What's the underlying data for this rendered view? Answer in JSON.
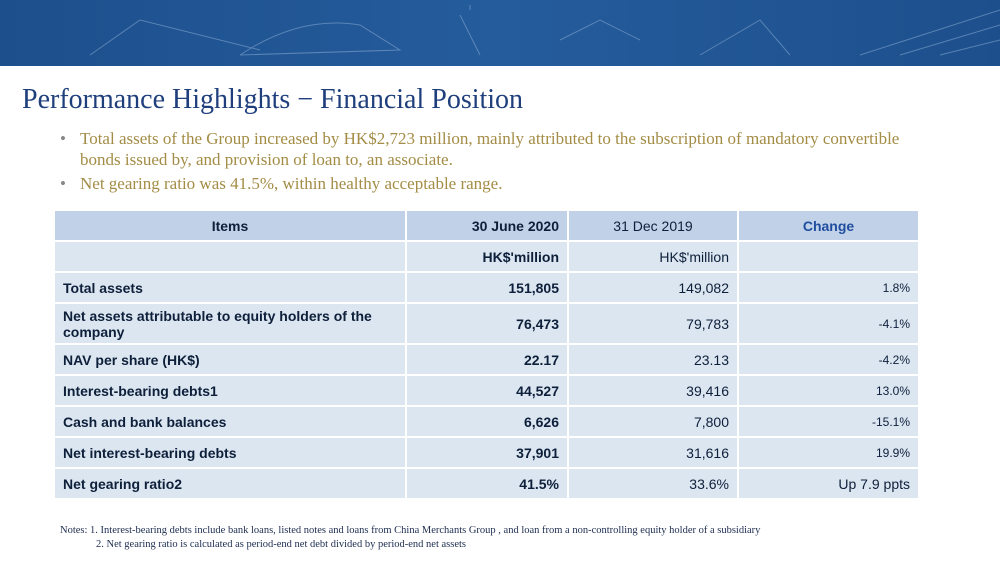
{
  "header": {
    "title": "Performance Highlights − Financial Position",
    "bullets": [
      "Total assets of the Group increased by HK$2,723 million, mainly attributed to the subscription of mandatory convertible bonds issued by, and provision of loan to, an associate.",
      "Net gearing ratio was 41.5%, within healthy acceptable range."
    ]
  },
  "table": {
    "columns": [
      "Items",
      "30 June 2020",
      "31 Dec 2019",
      "Change"
    ],
    "units": [
      "HK$'million",
      "HK$'million"
    ],
    "rows": [
      [
        "Total assets",
        "151,805",
        "149,082",
        "1.8%"
      ],
      [
        "Net assets attributable to equity holders of the company",
        "76,473",
        "79,783",
        "-4.1%"
      ],
      [
        "NAV per share (HK$)",
        "22.17",
        "23.13",
        "-4.2%"
      ],
      [
        "Interest-bearing debts1",
        "44,527",
        "39,416",
        "13.0%"
      ],
      [
        "Cash and bank balances",
        "6,626",
        "7,800",
        "-15.1%"
      ],
      [
        "Net interest-bearing debts",
        "37,901",
        "31,616",
        "19.9%"
      ],
      [
        "Net gearing ratio2",
        "41.5%",
        "33.6%",
        "Up 7.9 ppts"
      ]
    ]
  },
  "notes": [
    "Notes:",
    "1.  Interest-bearing debts include bank loans, listed notes and loans from China Merchants Group ,  and loan from a non-controlling  equity holder of a subsidiary",
    "2. Net gearing ratio is calculated as period-end net debt divided by period-end net assets"
  ]
}
